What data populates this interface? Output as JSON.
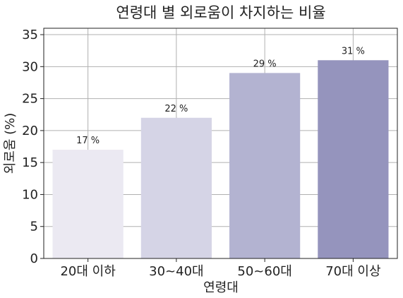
{
  "chart_data": {
    "type": "bar",
    "title": "연령대 별 외로움이 차지하는 비율",
    "xlabel": "연령대",
    "ylabel": "외로움 (%)",
    "categories": [
      "20대 이하",
      "30~40대",
      "50~60대",
      "70대 이상"
    ],
    "values": [
      17,
      22,
      29,
      31
    ],
    "value_labels": [
      "17 %",
      "22 %",
      "29 %",
      "31 %"
    ],
    "colors": [
      "#ebe9f2",
      "#d5d4e6",
      "#b3b3d1",
      "#9594bd"
    ],
    "ylim": [
      0,
      36
    ],
    "yticks": [
      0,
      5,
      10,
      15,
      20,
      25,
      30,
      35
    ],
    "grid": true,
    "legend": "none"
  }
}
